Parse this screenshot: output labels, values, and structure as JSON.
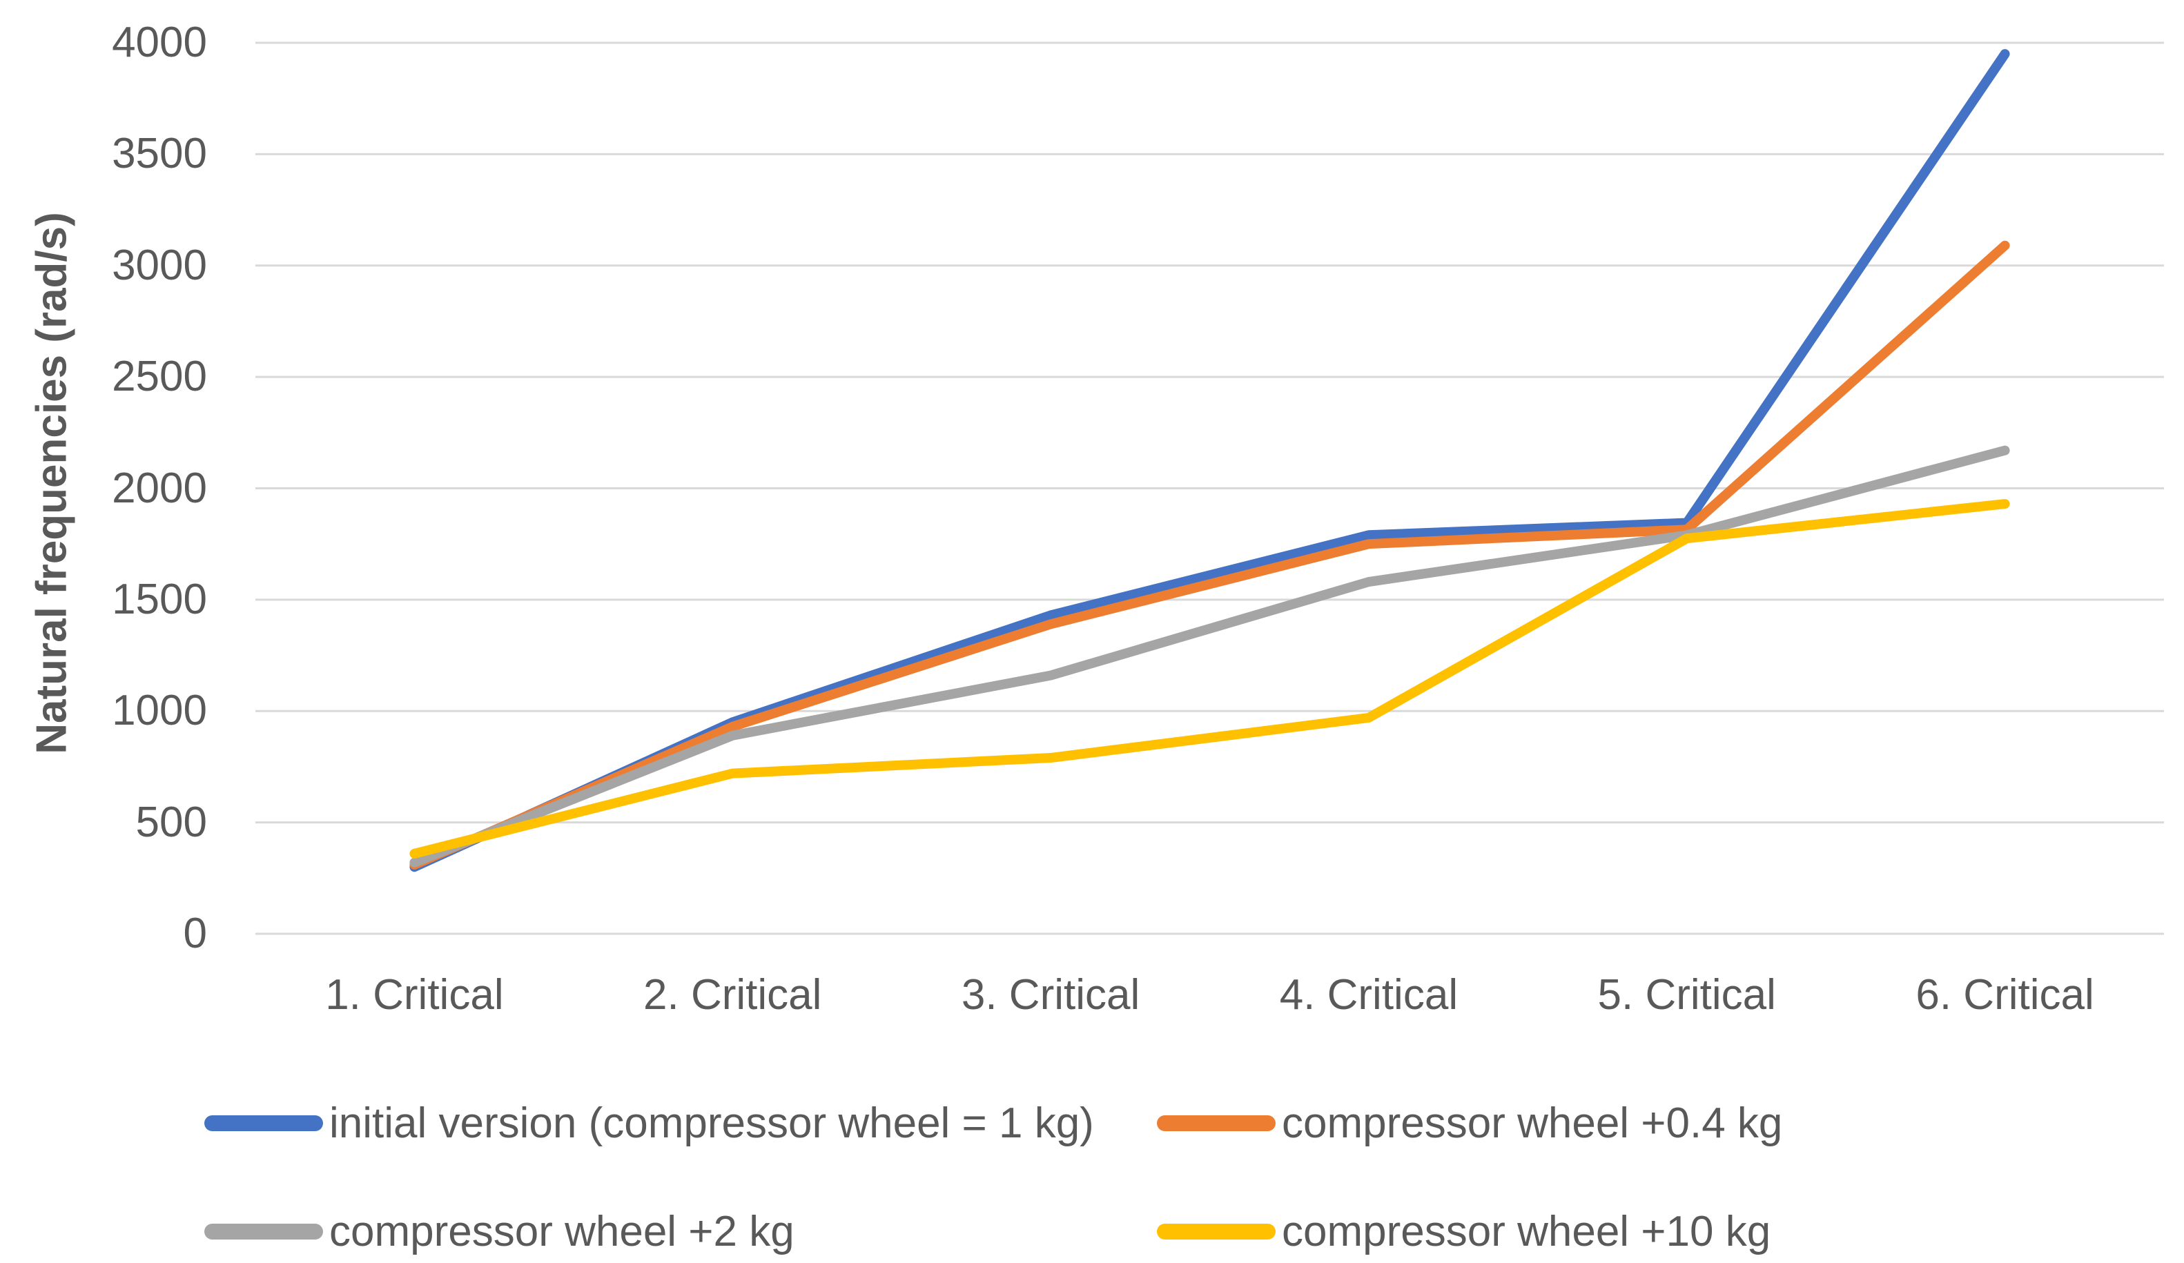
{
  "chart_data": {
    "type": "line",
    "title": "",
    "xlabel": "",
    "ylabel": "Natural frequencies (rad/s)",
    "categories": [
      "1. Critical",
      "2. Critical",
      "3. Critical",
      "4. Critical",
      "5. Critical",
      "6. Critical"
    ],
    "y_ticks": [
      0,
      500,
      1000,
      1500,
      2000,
      2500,
      3000,
      3500,
      4000
    ],
    "ylim": [
      0,
      4000
    ],
    "grid": "horizontal-only",
    "legend_position": "bottom-two-columns",
    "series": [
      {
        "name": "initial version (compressor wheel = 1 kg)",
        "color": "#4472C4",
        "values": [
          300,
          950,
          1430,
          1790,
          1845,
          3950
        ]
      },
      {
        "name": "compressor wheel +0.4 kg",
        "color": "#ED7D31",
        "values": [
          310,
          930,
          1390,
          1750,
          1815,
          3090
        ]
      },
      {
        "name": "compressor wheel +2 kg",
        "color": "#A5A5A5",
        "values": [
          320,
          890,
          1160,
          1580,
          1790,
          2170
        ]
      },
      {
        "name": "compressor wheel +10 kg",
        "color": "#FFC000",
        "values": [
          360,
          720,
          790,
          970,
          1775,
          1930
        ]
      }
    ]
  },
  "colors": {
    "axis_text": "#595959",
    "gridline": "#D9D9D9",
    "background": "#FFFFFF"
  }
}
